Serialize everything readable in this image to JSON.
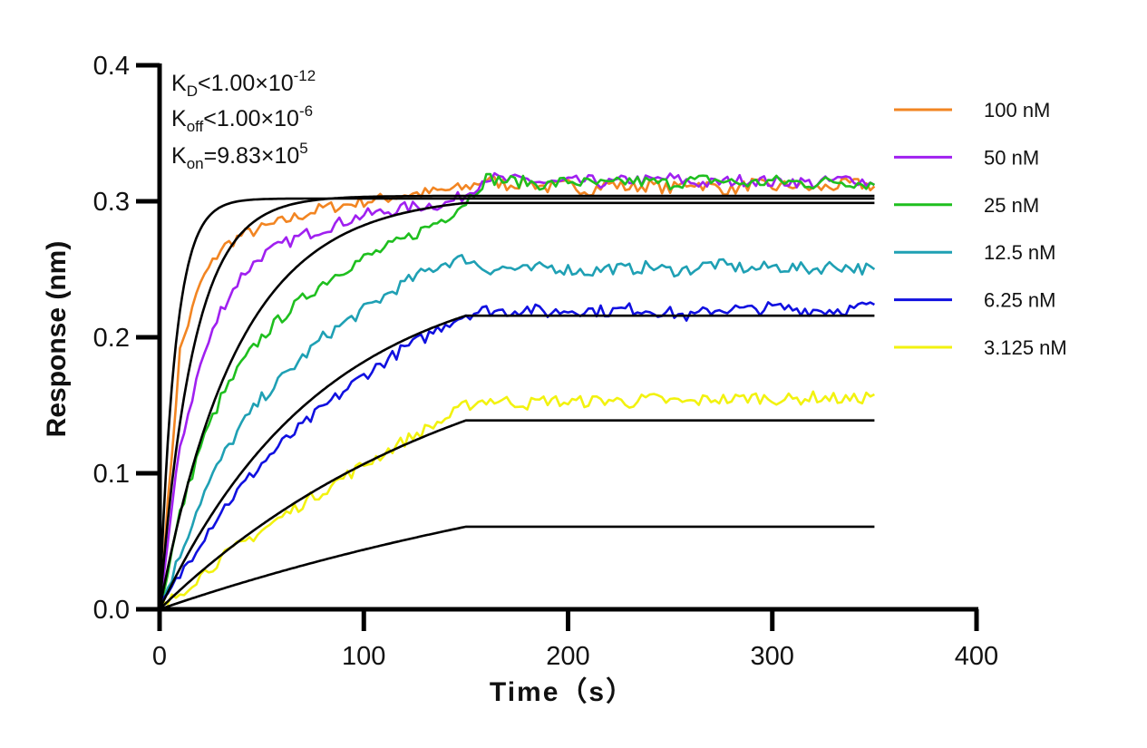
{
  "chart_data": {
    "type": "line",
    "title": "",
    "xlabel": "Time（s）",
    "ylabel": "Response (nm)",
    "xlim": [
      0,
      400
    ],
    "ylim": [
      0,
      0.4
    ],
    "xticks": [
      0,
      100,
      200,
      300,
      400
    ],
    "xtick_labels": [
      "0",
      "100",
      "200",
      "300",
      "400"
    ],
    "yticks": [
      0,
      0.1,
      0.2,
      0.3,
      0.4
    ],
    "ytick_labels": [
      "0.0",
      "0.1",
      "0.2",
      "0.3",
      "0.4"
    ],
    "grid": false,
    "legend_position": "right",
    "annotations": [
      {
        "main": "K",
        "sub": "D",
        "rest": "<1.00×10",
        "sup": "-12"
      },
      {
        "main": "K",
        "sub": "off",
        "rest": "<1.00×10",
        "sup": "-6"
      },
      {
        "main": "K",
        "sub": "on",
        "rest": "=9.83×10",
        "sup": "5"
      }
    ],
    "x": [
      0,
      10,
      20,
      30,
      40,
      50,
      60,
      70,
      80,
      90,
      100,
      110,
      120,
      130,
      140,
      150,
      160,
      170,
      180,
      190,
      200,
      210,
      220,
      230,
      240,
      250,
      260,
      270,
      280,
      290,
      300,
      310,
      320,
      330,
      340,
      350
    ],
    "series": [
      {
        "name": "100 nM",
        "color": "#F28522",
        "values": [
          0,
          0.19,
          0.24,
          0.265,
          0.275,
          0.28,
          0.285,
          0.29,
          0.295,
          0.297,
          0.3,
          0.302,
          0.305,
          0.306,
          0.308,
          0.31,
          0.316,
          0.312,
          0.314,
          0.31,
          0.312,
          0.308,
          0.313,
          0.31,
          0.312,
          0.309,
          0.314,
          0.311,
          0.308,
          0.313,
          0.31,
          0.312,
          0.309,
          0.311,
          0.313,
          0.311
        ]
      },
      {
        "name": "50 nM",
        "color": "#A020F0",
        "values": [
          0,
          0.12,
          0.18,
          0.22,
          0.245,
          0.26,
          0.268,
          0.275,
          0.28,
          0.285,
          0.29,
          0.292,
          0.295,
          0.297,
          0.298,
          0.305,
          0.318,
          0.315,
          0.316,
          0.313,
          0.314,
          0.315,
          0.313,
          0.316,
          0.315,
          0.317,
          0.314,
          0.313,
          0.315,
          0.316,
          0.314,
          0.315,
          0.313,
          0.315,
          0.317,
          0.312
        ]
      },
      {
        "name": "25 nM",
        "color": "#1FBF1F",
        "values": [
          0,
          0.07,
          0.12,
          0.155,
          0.18,
          0.2,
          0.215,
          0.228,
          0.24,
          0.25,
          0.258,
          0.265,
          0.272,
          0.28,
          0.288,
          0.3,
          0.317,
          0.315,
          0.314,
          0.312,
          0.315,
          0.313,
          0.312,
          0.315,
          0.314,
          0.313,
          0.315,
          0.316,
          0.314,
          0.313,
          0.315,
          0.314,
          0.313,
          0.315,
          0.314,
          0.312
        ]
      },
      {
        "name": "12.5 nM",
        "color": "#1FA0B4",
        "values": [
          0,
          0.04,
          0.08,
          0.11,
          0.135,
          0.155,
          0.17,
          0.185,
          0.2,
          0.21,
          0.22,
          0.23,
          0.24,
          0.248,
          0.255,
          0.258,
          0.25,
          0.251,
          0.249,
          0.252,
          0.25,
          0.248,
          0.251,
          0.25,
          0.252,
          0.249,
          0.25,
          0.254,
          0.252,
          0.25,
          0.252,
          0.251,
          0.25,
          0.253,
          0.251,
          0.25
        ]
      },
      {
        "name": "6.25 nM",
        "color": "#1010E0",
        "values": [
          0,
          0.025,
          0.05,
          0.072,
          0.09,
          0.107,
          0.122,
          0.135,
          0.148,
          0.16,
          0.172,
          0.182,
          0.192,
          0.2,
          0.21,
          0.217,
          0.22,
          0.219,
          0.221,
          0.218,
          0.22,
          0.22,
          0.219,
          0.221,
          0.22,
          0.218,
          0.215,
          0.22,
          0.221,
          0.22,
          0.222,
          0.221,
          0.22,
          0.22,
          0.221,
          0.224
        ]
      },
      {
        "name": "3.125 nM",
        "color": "#F2F20F",
        "values": [
          0,
          0.012,
          0.025,
          0.037,
          0.048,
          0.058,
          0.068,
          0.078,
          0.087,
          0.097,
          0.106,
          0.115,
          0.124,
          0.132,
          0.14,
          0.15,
          0.154,
          0.153,
          0.151,
          0.154,
          0.152,
          0.153,
          0.154,
          0.152,
          0.155,
          0.153,
          0.152,
          0.155,
          0.154,
          0.156,
          0.155,
          0.154,
          0.156,
          0.155,
          0.154,
          0.158
        ]
      }
    ],
    "fits": [
      {
        "name": "100 nM fit",
        "color": "#000000",
        "rmax": 0.302,
        "k": 0.13,
        "t_assoc_end": 150,
        "t_end": 350
      },
      {
        "name": "50 nM fit",
        "color": "#000000",
        "rmax": 0.304,
        "k": 0.06,
        "t_assoc_end": 150,
        "t_end": 350
      },
      {
        "name": "25 nM fit",
        "color": "#000000",
        "rmax": 0.305,
        "k": 0.026,
        "t_assoc_end": 150,
        "t_end": 350
      },
      {
        "name": "12.5 nM fit",
        "color": "#000000",
        "rmax": 0.255,
        "k": 0.0125,
        "t_assoc_end": 150,
        "t_end": 350
      },
      {
        "name": "6.25 nM fit",
        "color": "#000000",
        "rmax": 0.221,
        "k": 0.0066,
        "t_assoc_end": 150,
        "t_end": 350
      },
      {
        "name": "3.125 nM fit",
        "color": "#000000",
        "rmax": 0.152,
        "k": 0.0034,
        "t_assoc_end": 150,
        "t_end": 350
      }
    ]
  }
}
